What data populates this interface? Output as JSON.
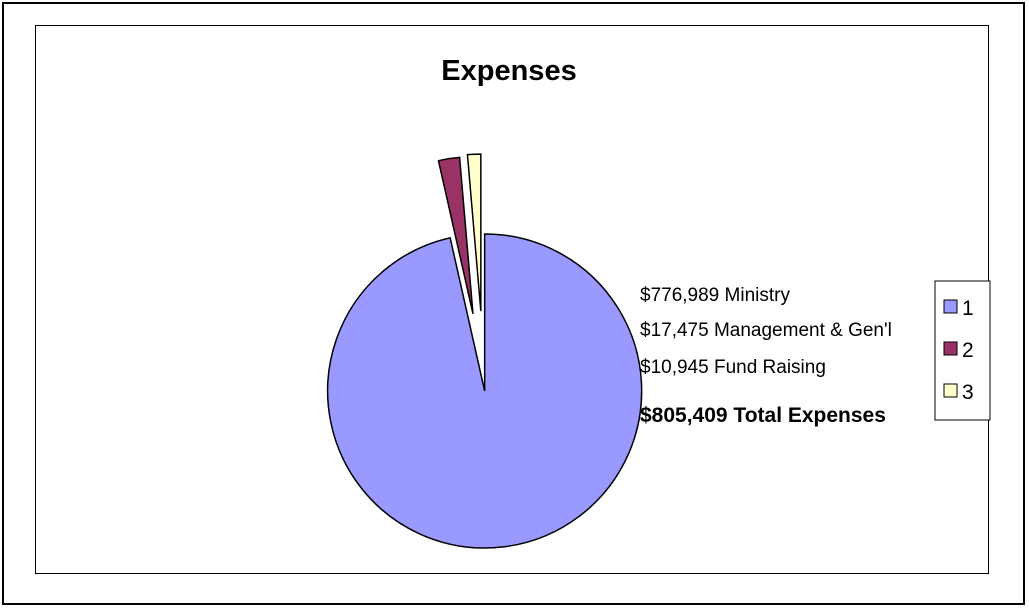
{
  "chart_data": {
    "type": "pie",
    "title": "Expenses",
    "categories": [
      "1",
      "2",
      "3"
    ],
    "values": [
      776989,
      17475,
      10945
    ],
    "colors": [
      "#9999FF",
      "#993366",
      "#FFFFCC"
    ],
    "exploded": true,
    "annotations": [
      "$776,989 Ministry",
      "$17,475 Management & Gen'l",
      "$10,945 Fund Raising",
      "$805,409 Total Expenses"
    ],
    "legend": {
      "position": "right",
      "entries": [
        "1",
        "2",
        "3"
      ]
    }
  }
}
